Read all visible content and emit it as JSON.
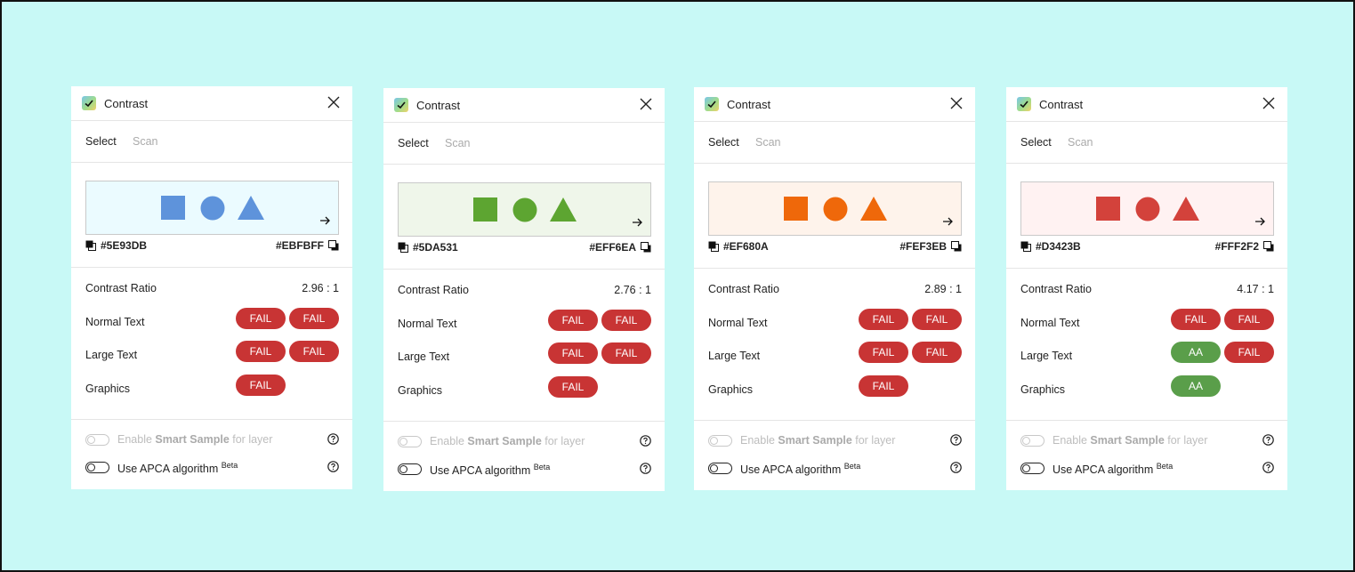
{
  "panels": [
    {
      "title": "Contrast",
      "tabs": [
        "Select",
        "Scan"
      ],
      "foreground_hex": "#5E93DB",
      "background_hex": "#EBFBFF",
      "contrast_ratio_label": "Contrast Ratio",
      "contrast_ratio": "2.96 : 1",
      "rows": [
        {
          "label": "Normal Text",
          "badges": [
            {
              "text": "FAIL",
              "status": "fail"
            },
            {
              "text": "FAIL",
              "status": "fail"
            }
          ]
        },
        {
          "label": "Large Text",
          "badges": [
            {
              "text": "FAIL",
              "status": "fail"
            },
            {
              "text": "FAIL",
              "status": "fail"
            }
          ]
        },
        {
          "label": "Graphics",
          "badges": [
            {
              "text": "FAIL",
              "status": "fail"
            }
          ]
        }
      ],
      "smart_sample": {
        "prefix": "Enable ",
        "bold": "Smart Sample",
        "suffix": " for layer"
      },
      "apca": {
        "label": "Use APCA algorithm ",
        "sup": "Beta"
      }
    },
    {
      "title": "Contrast",
      "tabs": [
        "Select",
        "Scan"
      ],
      "foreground_hex": "#5DA531",
      "background_hex": "#EFF6EA",
      "contrast_ratio_label": "Contrast Ratio",
      "contrast_ratio": "2.76 : 1",
      "rows": [
        {
          "label": "Normal Text",
          "badges": [
            {
              "text": "FAIL",
              "status": "fail"
            },
            {
              "text": "FAIL",
              "status": "fail"
            }
          ]
        },
        {
          "label": "Large Text",
          "badges": [
            {
              "text": "FAIL",
              "status": "fail"
            },
            {
              "text": "FAIL",
              "status": "fail"
            }
          ]
        },
        {
          "label": "Graphics",
          "badges": [
            {
              "text": "FAIL",
              "status": "fail"
            }
          ]
        }
      ],
      "smart_sample": {
        "prefix": "Enable ",
        "bold": "Smart Sample",
        "suffix": " for layer"
      },
      "apca": {
        "label": "Use APCA algorithm ",
        "sup": "Beta"
      }
    },
    {
      "title": "Contrast",
      "tabs": [
        "Select",
        "Scan"
      ],
      "foreground_hex": "#EF680A",
      "background_hex": "#FEF3EB",
      "contrast_ratio_label": "Contrast Ratio",
      "contrast_ratio": "2.89 : 1",
      "rows": [
        {
          "label": "Normal Text",
          "badges": [
            {
              "text": "FAIL",
              "status": "fail"
            },
            {
              "text": "FAIL",
              "status": "fail"
            }
          ]
        },
        {
          "label": "Large Text",
          "badges": [
            {
              "text": "FAIL",
              "status": "fail"
            },
            {
              "text": "FAIL",
              "status": "fail"
            }
          ]
        },
        {
          "label": "Graphics",
          "badges": [
            {
              "text": "FAIL",
              "status": "fail"
            }
          ]
        }
      ],
      "smart_sample": {
        "prefix": "Enable ",
        "bold": "Smart Sample",
        "suffix": " for layer"
      },
      "apca": {
        "label": "Use APCA algorithm ",
        "sup": "Beta"
      }
    },
    {
      "title": "Contrast",
      "tabs": [
        "Select",
        "Scan"
      ],
      "foreground_hex": "#D3423B",
      "background_hex": "#FFF2F2",
      "contrast_ratio_label": "Contrast Ratio",
      "contrast_ratio": "4.17 : 1",
      "rows": [
        {
          "label": "Normal Text",
          "badges": [
            {
              "text": "FAIL",
              "status": "fail"
            },
            {
              "text": "FAIL",
              "status": "fail"
            }
          ]
        },
        {
          "label": "Large Text",
          "badges": [
            {
              "text": "AA",
              "status": "pass"
            },
            {
              "text": "FAIL",
              "status": "fail"
            }
          ]
        },
        {
          "label": "Graphics",
          "badges": [
            {
              "text": "AA",
              "status": "pass"
            }
          ]
        }
      ],
      "smart_sample": {
        "prefix": "Enable ",
        "bold": "Smart Sample",
        "suffix": " for layer"
      },
      "apca": {
        "label": "Use APCA algorithm ",
        "sup": "Beta"
      }
    }
  ],
  "colors": {
    "canvas_background": "#C8F9F6",
    "fail_badge": "#C83434",
    "pass_badge": "#5A9E4A"
  },
  "icons": {
    "plugin": "contrast-plugin-icon",
    "close": "close-icon",
    "swap": "arrow-right-icon",
    "copy": "copy-icon",
    "help": "help-circle-icon",
    "toggle": "toggle-switch"
  }
}
